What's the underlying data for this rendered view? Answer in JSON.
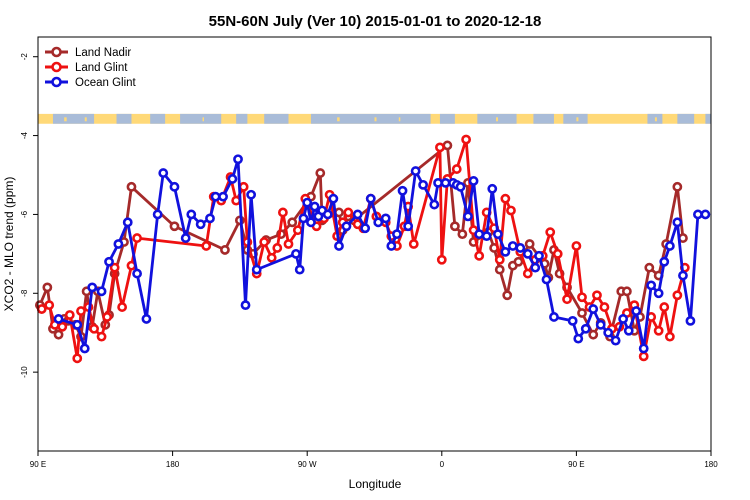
{
  "chart_data": {
    "type": "line",
    "title": "55N-60N July (Ver 10)   2015-01-01 to 2020-12-18",
    "xlabel": "Longitude",
    "ylabel": "XCO2 - MLO trend (ppm)",
    "xlim": [
      90,
      450
    ],
    "ylim": [
      -12,
      -1.5
    ],
    "x_ticks": [
      {
        "value": 90,
        "label": "90 E"
      },
      {
        "value": 162,
        "label": "180"
      },
      {
        "value": 234,
        "label": "90 W"
      },
      {
        "value": 306,
        "label": "0"
      },
      {
        "value": 378,
        "label": "90 E"
      },
      {
        "value": 450,
        "label": "180"
      }
    ],
    "y_ticks": [
      -2,
      -4,
      -6,
      -8,
      -10
    ],
    "grid": false,
    "legend_position": "top-left",
    "map_strip": {
      "land_color": "#ffd978",
      "ocean_color": "#a9bcd8",
      "y_range": [
        -3.7,
        -3.45
      ]
    },
    "series": [
      {
        "name": "Land Nadir",
        "color": "#a52a2a",
        "x": [
          91,
          95,
          98,
          101,
          104,
          106,
          110,
          113,
          116,
          119,
          122,
          126,
          128,
          131,
          136,
          140,
          163,
          190,
          198,
          202,
          205,
          212,
          220,
          226,
          236,
          241,
          242,
          251,
          253,
          256,
          259,
          309,
          313,
          317,
          320,
          323,
          331,
          334,
          337,
          341,
          344,
          347,
          353,
          361,
          363,
          366,
          369,
          373,
          381,
          387,
          391,
          396,
          402,
          405,
          409,
          412,
          417,
          422,
          426,
          432,
          435
        ],
        "y": [
          -8.3,
          -7.85,
          -8.9,
          -9.05,
          -8.65,
          -8.7,
          -8.8,
          -9.1,
          -7.95,
          -8.85,
          -7.95,
          -8.8,
          -8.55,
          -7.5,
          -6.7,
          -5.3,
          -6.3,
          -6.9,
          -6.15,
          -6.9,
          -7.0,
          -6.65,
          -6.5,
          -6.2,
          -5.55,
          -4.95,
          -6.15,
          -5.95,
          -6.4,
          -6.05,
          -6.15,
          -4.25,
          -6.3,
          -6.5,
          -5.2,
          -6.7,
          -6.45,
          -6.85,
          -7.4,
          -8.05,
          -7.3,
          -7.2,
          -6.75,
          -7.25,
          -7.6,
          -6.9,
          -7.5,
          -7.85,
          -8.5,
          -9.05,
          -8.75,
          -9.1,
          -7.95,
          -7.95,
          -8.95,
          -8.6,
          -7.35,
          -7.55,
          -6.75,
          -5.3,
          -6.6
        ]
      },
      {
        "name": "Land Glint",
        "color": "#ee1111",
        "x": [
          92,
          96,
          99,
          103,
          107,
          111,
          113,
          117,
          120,
          124,
          127,
          131,
          135,
          140,
          143,
          180,
          184,
          188,
          193,
          196,
          200,
          202,
          207,
          211,
          215,
          218,
          221,
          224,
          229,
          233,
          239,
          243,
          246,
          250,
          253,
          256,
          261,
          264,
          268,
          271,
          276,
          279,
          282,
          286,
          288,
          291,
          305,
          306,
          309,
          314,
          319,
          323,
          326,
          330,
          334,
          337,
          340,
          343,
          348,
          352,
          356,
          360,
          364,
          368,
          373,
          378,
          381,
          385,
          389,
          393,
          397,
          401,
          405,
          409,
          414,
          418,
          422,
          425,
          428,
          432,
          436
        ],
        "y": [
          -8.4,
          -8.3,
          -8.8,
          -8.85,
          -8.55,
          -9.65,
          -8.45,
          -8.35,
          -8.9,
          -9.1,
          -8.6,
          -7.35,
          -8.35,
          -7.3,
          -6.6,
          -6.8,
          -5.55,
          -5.65,
          -5.05,
          -5.65,
          -5.3,
          -6.7,
          -7.5,
          -6.7,
          -7.1,
          -6.85,
          -5.95,
          -6.75,
          -6.4,
          -5.6,
          -6.3,
          -6.1,
          -5.5,
          -6.55,
          -6.2,
          -5.95,
          -6.25,
          -6.35,
          -5.6,
          -6.05,
          -6.2,
          -6.55,
          -6.8,
          -6.3,
          -5.8,
          -6.75,
          -4.3,
          -7.15,
          -5.1,
          -4.85,
          -4.1,
          -6.4,
          -7.05,
          -5.95,
          -6.35,
          -7.15,
          -5.6,
          -5.9,
          -6.95,
          -7.5,
          -7.15,
          -7.05,
          -6.45,
          -7.0,
          -8.15,
          -6.8,
          -8.1,
          -8.35,
          -8.05,
          -8.35,
          -8.9,
          -8.85,
          -8.5,
          -8.3,
          -9.6,
          -8.6,
          -8.95,
          -8.35,
          -9.1,
          -8.05,
          -7.35
        ]
      },
      {
        "name": "Ocean Glint",
        "color": "#1111dd",
        "x": [
          101,
          111,
          115,
          119,
          124,
          128,
          133,
          138,
          143,
          148,
          154,
          157,
          163,
          169,
          172,
          177,
          182,
          185,
          189,
          194,
          197,
          201,
          204,
          207,
          228,
          230,
          232,
          234,
          236,
          238,
          240,
          242,
          245,
          248,
          251,
          255,
          261,
          265,
          268,
          272,
          276,
          279,
          282,
          285,
          288,
          292,
          296,
          302,
          304,
          308,
          312,
          314,
          316,
          320,
          323,
          326,
          330,
          333,
          336,
          340,
          344,
          348,
          352,
          356,
          358,
          362,
          366,
          376,
          379,
          383,
          387,
          391,
          395,
          399,
          403,
          406,
          410,
          414,
          418,
          422,
          425,
          428,
          432,
          435,
          439,
          443,
          447
        ],
        "y": [
          -8.65,
          -8.8,
          -9.4,
          -7.85,
          -7.95,
          -7.2,
          -6.75,
          -6.2,
          -7.5,
          -8.65,
          -6.0,
          -4.95,
          -5.3,
          -6.6,
          -6.0,
          -6.25,
          -6.1,
          -5.55,
          -5.55,
          -5.1,
          -4.6,
          -8.3,
          -5.5,
          -7.4,
          -7.0,
          -7.4,
          -6.1,
          -5.7,
          -6.2,
          -5.8,
          -6.05,
          -5.9,
          -6.0,
          -5.6,
          -6.8,
          -6.3,
          -6.0,
          -6.35,
          -5.6,
          -6.2,
          -6.1,
          -6.8,
          -6.5,
          -5.4,
          -6.3,
          -4.9,
          -5.25,
          -5.75,
          -5.2,
          -5.2,
          -5.2,
          -5.25,
          -5.3,
          -6.05,
          -5.15,
          -6.5,
          -6.55,
          -5.35,
          -6.5,
          -6.95,
          -6.8,
          -6.85,
          -7.0,
          -7.35,
          -7.05,
          -7.65,
          -8.6,
          -8.7,
          -9.15,
          -8.9,
          -8.4,
          -8.8,
          -9.0,
          -9.2,
          -8.65,
          -8.95,
          -8.45,
          -9.4,
          -7.8,
          -8.0,
          -7.2,
          -6.8,
          -6.2,
          -7.55,
          -8.7,
          -6.0,
          -6.0
        ]
      }
    ]
  }
}
